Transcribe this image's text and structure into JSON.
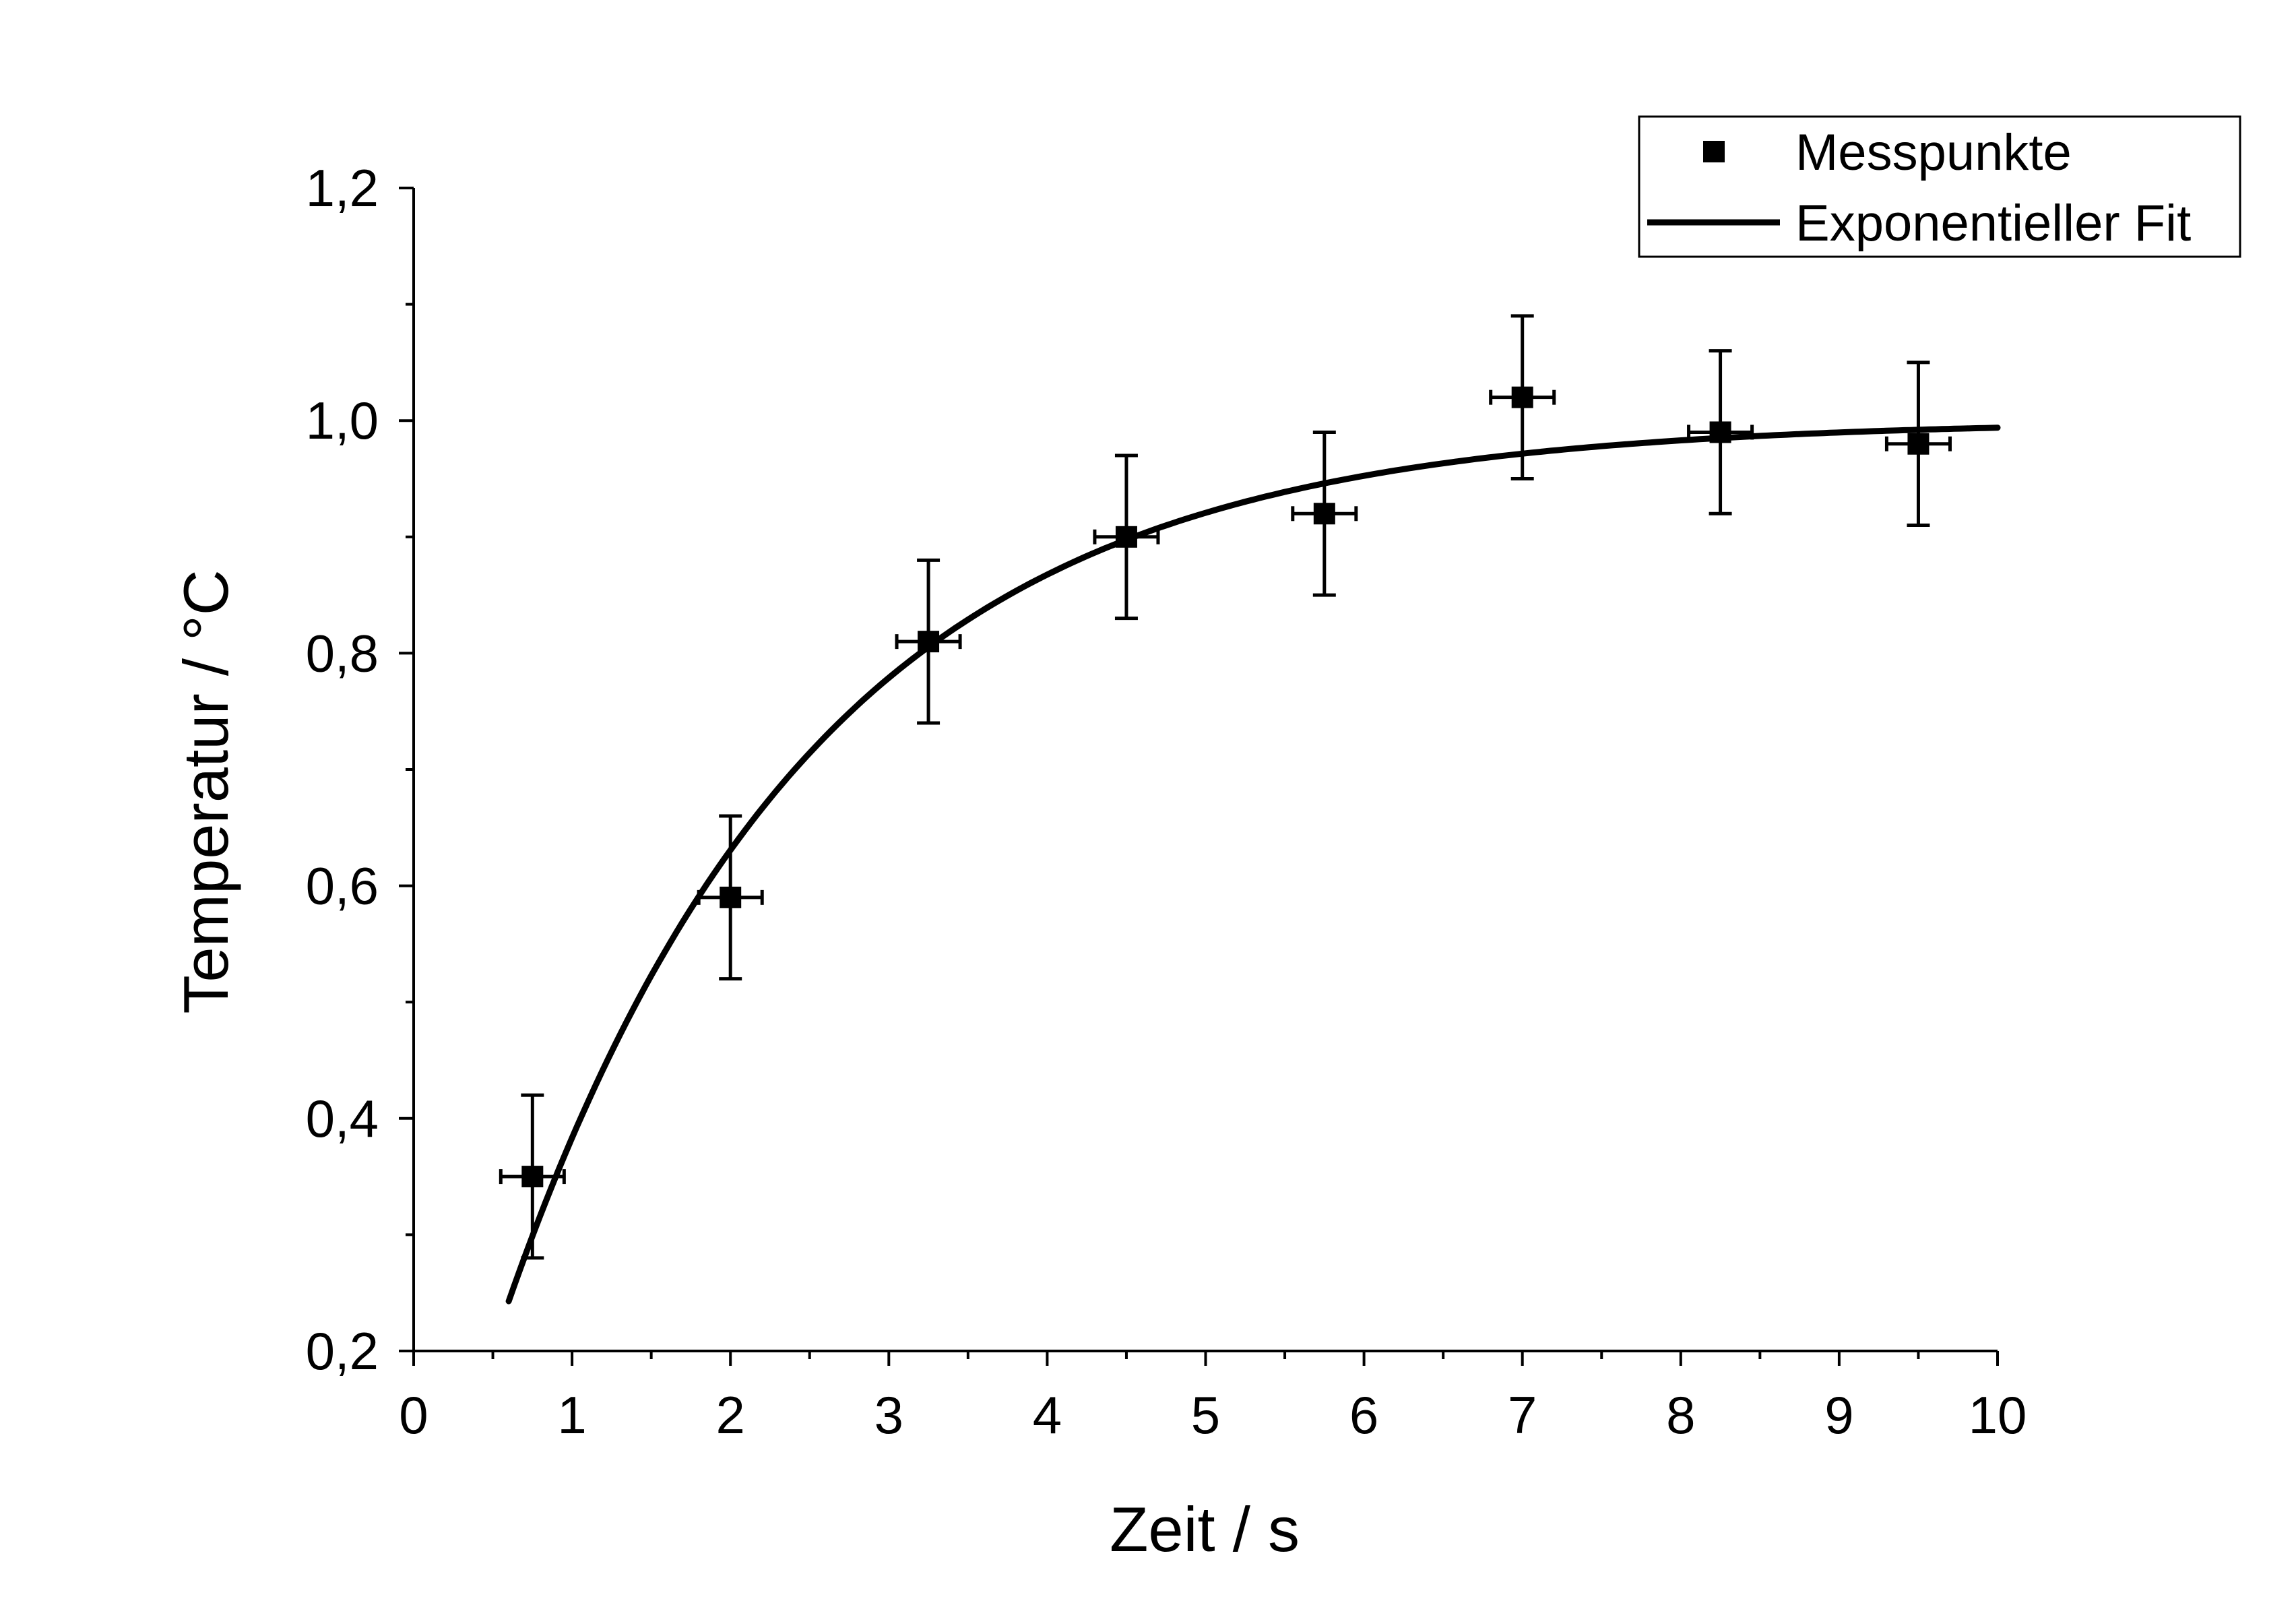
{
  "chart_data": {
    "type": "scatter",
    "title": "",
    "xlabel": "Zeit / s",
    "ylabel": "Temperatur / °C",
    "xlim": [
      0,
      10
    ],
    "ylim": [
      0.2,
      1.2
    ],
    "x_ticks": [
      0,
      1,
      2,
      3,
      4,
      5,
      6,
      7,
      8,
      9,
      10
    ],
    "x_tick_labels": [
      "0",
      "1",
      "2",
      "3",
      "4",
      "5",
      "6",
      "7",
      "8",
      "9",
      "10"
    ],
    "y_ticks": [
      0.2,
      0.4,
      0.6,
      0.8,
      1.0,
      1.2
    ],
    "y_tick_labels": [
      "0,2",
      "0,4",
      "0,6",
      "0,8",
      "1,0",
      "1,2"
    ],
    "grid": false,
    "legend_position": "top-right",
    "series": [
      {
        "name": "Messpunkte",
        "kind": "points",
        "marker": "square",
        "color": "#000000",
        "x": [
          0.75,
          2.0,
          3.25,
          4.5,
          5.75,
          7.0,
          8.25,
          9.5
        ],
        "y": [
          0.35,
          0.59,
          0.81,
          0.9,
          0.92,
          1.02,
          0.99,
          0.98
        ],
        "x_error": [
          0.2,
          0.2,
          0.2,
          0.2,
          0.2,
          0.2,
          0.2,
          0.2
        ],
        "y_error": [
          0.07,
          0.07,
          0.07,
          0.07,
          0.07,
          0.07,
          0.07,
          0.07
        ]
      },
      {
        "name": "Exponentieller Fit",
        "kind": "line",
        "color": "#000000",
        "model": "y = A - B * exp(-x / t)",
        "params": {
          "A": 1.0,
          "B": 1.03,
          "t": 1.95
        },
        "x_range": [
          0.6,
          10
        ]
      }
    ]
  }
}
